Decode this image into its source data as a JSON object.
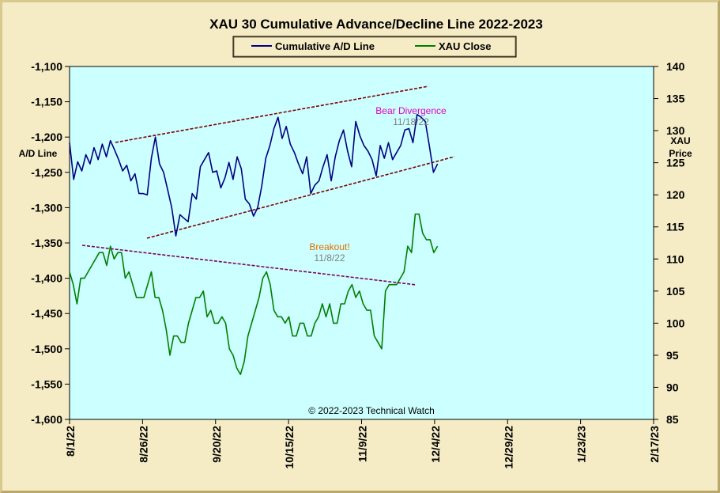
{
  "chart_data": {
    "type": "line",
    "title": "XAU 30 Cumulative Advance/Decline Line 2022-2023",
    "ylabel": "A/D Line",
    "y2label_line1": "XAU",
    "y2label_line2": "Price",
    "credit": "© 2022-2023  Technical Watch",
    "ylim": [
      -1600,
      -1100
    ],
    "y2lim": [
      85,
      140
    ],
    "yticks": [
      "-1,100",
      "-1,150",
      "-1,200",
      "-1,250",
      "-1,300",
      "-1,350",
      "-1,400",
      "-1,450",
      "-1,500",
      "-1,550",
      "-1,600"
    ],
    "y2ticks": [
      "140",
      "135",
      "130",
      "125",
      "120",
      "115",
      "110",
      "105",
      "100",
      "95",
      "90",
      "85"
    ],
    "xticks": [
      "8/1/22",
      "8/26/22",
      "9/20/22",
      "10/15/22",
      "11/9/22",
      "12/4/22",
      "12/29/22",
      "1/23/23",
      "2/17/23"
    ],
    "legend_position": "top-center",
    "grid": false,
    "colors": {
      "ad_line": "#000080",
      "xau_close": "#008000",
      "plot_bg": "#ccffff",
      "channel": "#800000",
      "bear_text": "#e000c0",
      "breakout_text": "#e07000",
      "date_text": "#808080"
    },
    "series": [
      {
        "name": "Cumulative A/D Line",
        "axis": "left",
        "values": [
          -1208,
          -1260,
          -1235,
          -1248,
          -1225,
          -1238,
          -1215,
          -1232,
          -1210,
          -1228,
          -1205,
          -1218,
          -1232,
          -1248,
          -1240,
          -1262,
          -1252,
          -1280,
          -1280,
          -1282,
          -1230,
          -1200,
          -1238,
          -1250,
          -1275,
          -1300,
          -1340,
          -1310,
          -1315,
          -1320,
          -1280,
          -1288,
          -1242,
          -1232,
          -1222,
          -1250,
          -1248,
          -1272,
          -1258,
          -1236,
          -1260,
          -1228,
          -1245,
          -1288,
          -1295,
          -1312,
          -1300,
          -1270,
          -1230,
          -1212,
          -1188,
          -1172,
          -1202,
          -1185,
          -1210,
          -1222,
          -1238,
          -1252,
          -1228,
          -1280,
          -1268,
          -1262,
          -1242,
          -1225,
          -1262,
          -1228,
          -1205,
          -1190,
          -1220,
          -1242,
          -1178,
          -1198,
          -1212,
          -1220,
          -1232,
          -1255,
          -1212,
          -1230,
          -1208,
          -1232,
          -1222,
          -1212,
          -1190,
          -1188,
          -1208,
          -1168,
          -1172,
          -1178,
          -1212,
          -1250,
          -1238
        ],
        "label": "Bear Divergence",
        "label_date": "11/18/22"
      },
      {
        "name": "XAU Close",
        "axis": "right",
        "values": [
          108,
          106,
          103,
          107,
          107,
          108,
          109,
          110,
          111,
          111,
          109,
          112,
          110,
          111,
          111,
          107,
          108,
          106,
          104,
          104,
          104,
          106,
          108,
          104,
          104,
          102,
          99,
          95,
          98,
          98,
          97,
          97,
          100,
          102,
          104,
          104,
          105,
          101,
          102,
          100,
          100,
          101,
          100,
          96,
          95,
          93,
          92,
          94,
          98,
          100,
          102,
          104,
          107,
          108,
          106,
          102,
          101,
          101,
          100,
          101,
          98,
          98,
          100,
          100,
          98,
          98,
          100,
          101,
          103,
          101,
          103,
          100,
          100,
          103,
          103,
          105,
          106,
          104,
          105,
          103,
          102,
          102,
          98,
          97,
          96,
          105,
          106,
          106,
          106,
          107,
          108,
          112,
          111,
          117,
          117,
          114,
          113,
          113,
          111,
          112
        ],
        "label": "Breakout!",
        "label_date": "11/8/22"
      }
    ]
  }
}
